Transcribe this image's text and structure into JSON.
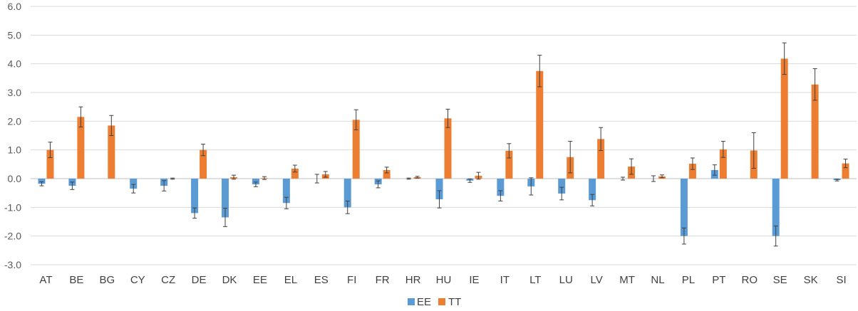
{
  "chart_data": {
    "type": "bar",
    "categories": [
      "AT",
      "BE",
      "BG",
      "CY",
      "CZ",
      "DE",
      "DK",
      "EE",
      "EL",
      "ES",
      "FI",
      "FR",
      "HR",
      "HU",
      "IE",
      "IT",
      "LT",
      "LU",
      "LV",
      "MT",
      "NL",
      "PL",
      "PT",
      "RO",
      "SE",
      "SK",
      "SI"
    ],
    "series": [
      {
        "name": "EE",
        "color": "#5B9BD5",
        "values": [
          -0.18,
          -0.25,
          0,
          -0.35,
          -0.25,
          -1.2,
          -1.35,
          -0.2,
          -0.85,
          0,
          -1.0,
          -0.2,
          0,
          -0.72,
          -0.07,
          -0.6,
          -0.27,
          -0.52,
          -0.75,
          0,
          0,
          -2.0,
          0.3,
          0,
          -2.0,
          0,
          -0.05
        ],
        "errors": [
          0.07,
          0.13,
          0,
          0.15,
          0.18,
          0.18,
          0.32,
          0.08,
          0.2,
          0.15,
          0.22,
          0.12,
          0.02,
          0.3,
          0.06,
          0.18,
          0.3,
          0.22,
          0.2,
          0.05,
          0.1,
          0.28,
          0.18,
          0,
          0.35,
          0,
          0.03
        ]
      },
      {
        "name": "TT",
        "color": "#ED7D31",
        "values": [
          1.0,
          2.15,
          1.85,
          0,
          0,
          1.0,
          0.05,
          0.02,
          0.35,
          0.15,
          2.05,
          0.3,
          0.05,
          2.1,
          0.1,
          0.97,
          3.75,
          0.75,
          1.38,
          0.42,
          0.08,
          0.52,
          1.02,
          0.98,
          4.18,
          3.28,
          0.53
        ],
        "errors": [
          0.27,
          0.35,
          0.35,
          0,
          0.02,
          0.2,
          0.07,
          0.05,
          0.12,
          0.1,
          0.35,
          0.1,
          0.03,
          0.32,
          0.12,
          0.25,
          0.55,
          0.55,
          0.4,
          0.27,
          0.05,
          0.2,
          0.28,
          0.62,
          0.55,
          0.55,
          0.15
        ]
      }
    ],
    "ylim": [
      -3.0,
      6.0
    ],
    "yticks": [
      "6.0",
      "5.0",
      "4.0",
      "3.0",
      "2.0",
      "1.0",
      "0.0",
      "-1.0",
      "-2.0",
      "-3.0"
    ],
    "grid": true,
    "legend_position": "bottom",
    "title": "",
    "xlabel": "",
    "ylabel": ""
  }
}
